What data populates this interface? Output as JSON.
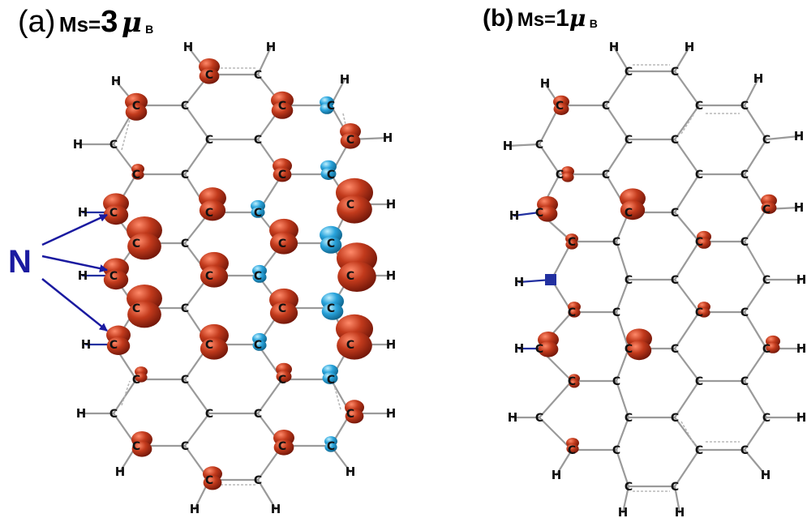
{
  "panel_a": {
    "prefix": "(a)",
    "ms_label": "Ms=",
    "ms_value": "3",
    "unit_symbol": "μ",
    "unit_subscript": "B"
  },
  "panel_b": {
    "prefix": "(b)",
    "ms_label": "Ms=",
    "ms_value": "1",
    "unit_symbol": "μ",
    "unit_subscript": "B"
  },
  "annotation": {
    "label": "N",
    "color": "#1a1aa0"
  },
  "atom_symbols": {
    "carbon": "C",
    "hydrogen": "H",
    "nitrogen": "N"
  },
  "colors": {
    "spin_up": "#b02a14",
    "spin_down": "#2aa4dc",
    "bond": "#9a9a9a",
    "nitrogen_bond": "#2230a0"
  }
}
